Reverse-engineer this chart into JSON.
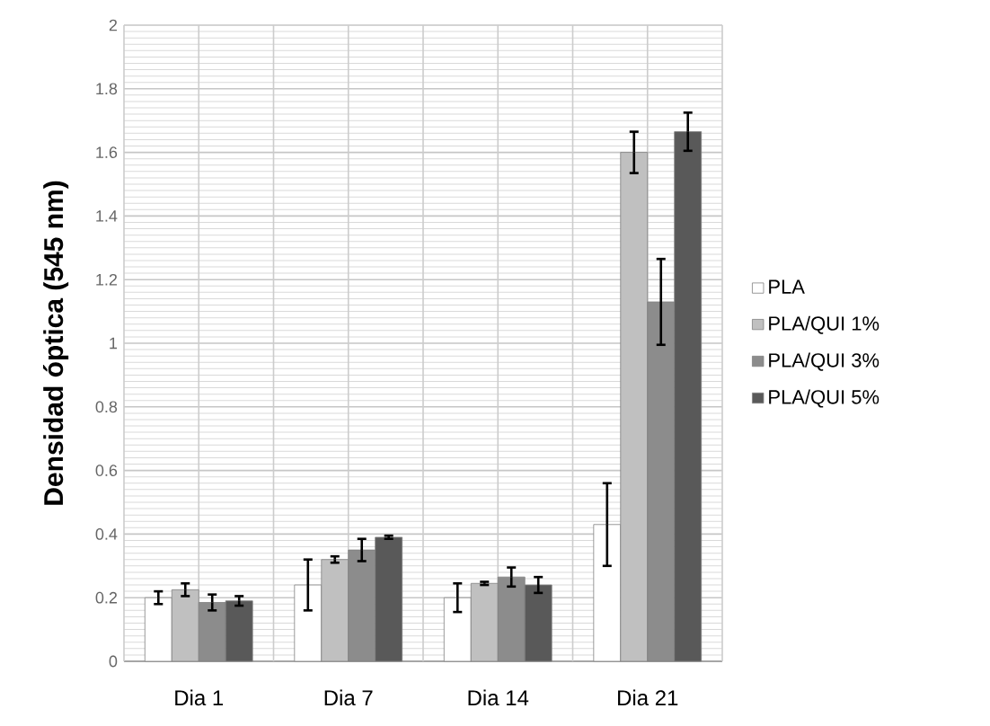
{
  "chart_data": {
    "type": "bar",
    "ylabel": "Densidad óptica  (545 nm)",
    "categories": [
      "Dia 1",
      "Dia 7",
      "Dia 14",
      "Dia 21"
    ],
    "series": [
      {
        "name": "PLA",
        "color": "#ffffff",
        "values": [
          0.2,
          0.24,
          0.2,
          0.43
        ],
        "errors": [
          0.02,
          0.08,
          0.045,
          0.13
        ]
      },
      {
        "name": "PLA/QUI 1%",
        "color": "#c0c0c0",
        "values": [
          0.225,
          0.32,
          0.245,
          1.6
        ],
        "errors": [
          0.02,
          0.01,
          0.005,
          0.065
        ]
      },
      {
        "name": "PLA/QUI 3%",
        "color": "#8c8c8c",
        "values": [
          0.185,
          0.35,
          0.265,
          1.13
        ],
        "errors": [
          0.025,
          0.035,
          0.03,
          0.135
        ]
      },
      {
        "name": "PLA/QUI 5%",
        "color": "#595959",
        "values": [
          0.19,
          0.39,
          0.24,
          1.665
        ],
        "errors": [
          0.015,
          0.005,
          0.025,
          0.06
        ]
      }
    ],
    "ylim": [
      0,
      2
    ],
    "yticks": [
      0,
      0.2,
      0.4,
      0.6,
      0.8,
      1,
      1.2,
      1.4,
      1.6,
      1.8,
      2
    ],
    "grid": true,
    "legend": "right"
  }
}
